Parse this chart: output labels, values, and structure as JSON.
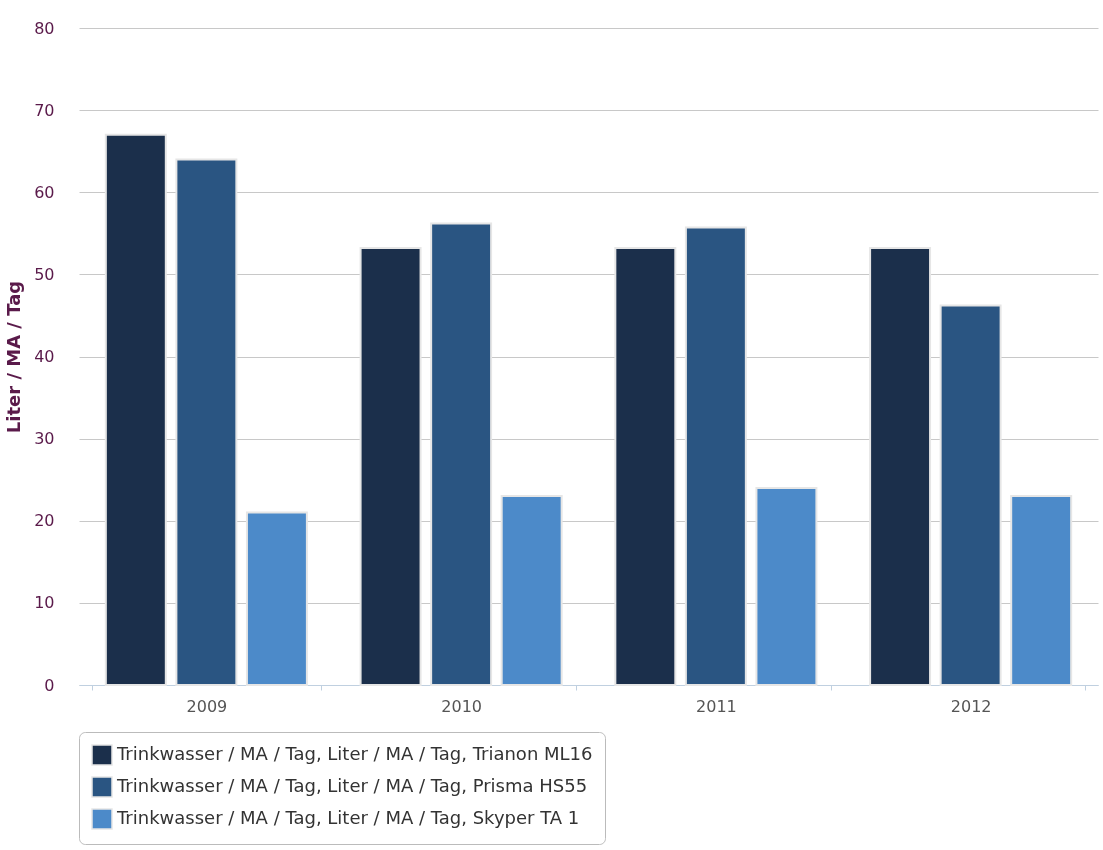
{
  "chart_data": {
    "type": "bar",
    "ylabel": "Liter / MA / Tag",
    "categories": [
      "2009",
      "2010",
      "2011",
      "2012"
    ],
    "series": [
      {
        "name": "Trinkwasser / MA / Tag, Liter / MA / Tag, Trianon ML16",
        "color": "#1b2f4b",
        "values": [
          67,
          53.2,
          53.2,
          53.2
        ]
      },
      {
        "name": "Trinkwasser / MA / Tag, Liter / MA / Tag, Prisma HS55",
        "color": "#2a5582",
        "values": [
          64,
          56.2,
          55.7,
          46.2
        ]
      },
      {
        "name": "Trinkwasser / MA / Tag, Liter / MA / Tag, Skyper TA 1",
        "color": "#4c8ac9",
        "values": [
          21,
          23,
          24,
          23
        ]
      }
    ],
    "ylim": [
      0,
      80
    ],
    "yticks": [
      0,
      10,
      20,
      30,
      40,
      50,
      60,
      70,
      80
    ],
    "grid": "y",
    "legend": "bottom"
  }
}
